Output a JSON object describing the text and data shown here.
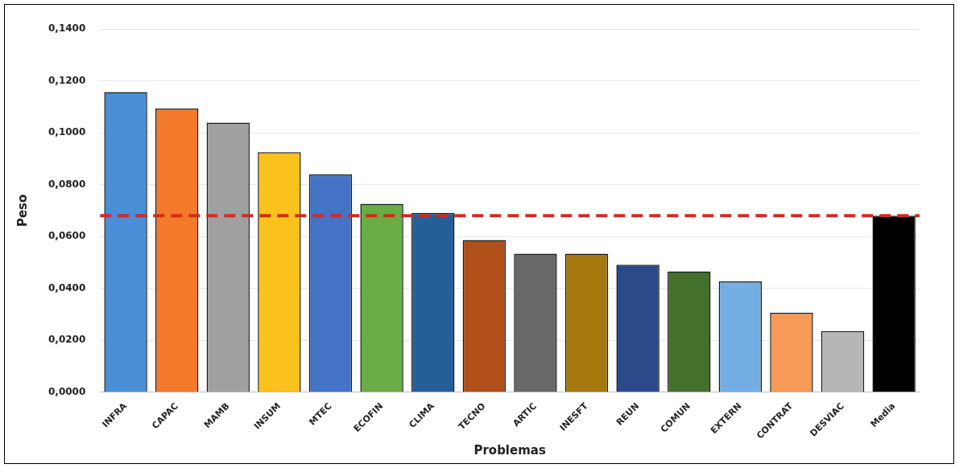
{
  "chart_data": {
    "type": "bar",
    "xlabel": "Problemas",
    "ylabel": "Peso",
    "categories": [
      "INFRA",
      "CAPAC",
      "MAMB",
      "INSUM",
      "MTEC",
      "ECOFIN",
      "CLIMA",
      "TECNO",
      "ARTIC",
      "INESFT",
      "REUN",
      "COMUN",
      "EXTERN",
      "CONTRAT",
      "DESVIAC",
      "Media"
    ],
    "values": [
      0.1157,
      0.1093,
      0.1039,
      0.0925,
      0.084,
      0.0726,
      0.0691,
      0.0587,
      0.0534,
      0.0534,
      0.0491,
      0.0466,
      0.0427,
      0.0306,
      0.0236,
      0.068
    ],
    "colors": [
      "#4a8fd8",
      "#f27a2a",
      "#a0a0a0",
      "#fcc21c",
      "#4472c4",
      "#6aad45",
      "#265f98",
      "#b04f1a",
      "#686868",
      "#a5790e",
      "#2b4a8a",
      "#44702c",
      "#74aee4",
      "#f79a58",
      "#b6b6b6",
      "#000000"
    ],
    "ylim": [
      0,
      0.14
    ],
    "yticks": [
      {
        "value": 0,
        "label": "0,0000"
      },
      {
        "value": 0.02,
        "label": "0,0200"
      },
      {
        "value": 0.04,
        "label": "0,0400"
      },
      {
        "value": 0.06,
        "label": "0,0600"
      },
      {
        "value": 0.08,
        "label": "0,0800"
      },
      {
        "value": 0.1,
        "label": "0,1000"
      },
      {
        "value": 0.12,
        "label": "0,1200"
      },
      {
        "value": 0.14,
        "label": "0,1400"
      }
    ],
    "grid": "y",
    "ref_lines": [
      {
        "axis": "y",
        "value": 0.068,
        "color": "#d42a1e",
        "line_style": "dashed"
      }
    ]
  }
}
